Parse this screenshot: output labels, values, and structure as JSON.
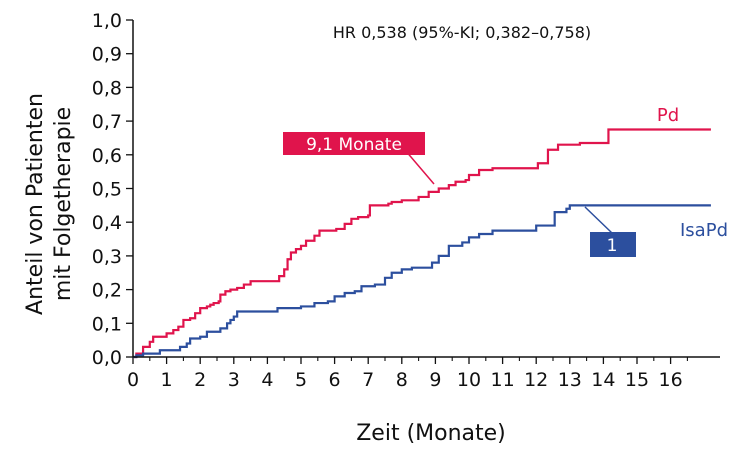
{
  "chart_data": {
    "type": "line",
    "xlabel": "Zeit (Monate)",
    "ylabel": [
      "Anteil von Patienten",
      "mit Folgetherapie"
    ],
    "xlim": [
      0,
      17.5
    ],
    "ylim": [
      0,
      1.0
    ],
    "x_ticks": [
      "0",
      "1",
      "2",
      "3",
      "4",
      "5",
      "6",
      "7",
      "8",
      "9",
      "10",
      "11",
      "12",
      "13",
      "14",
      "15",
      "16"
    ],
    "y_ticks": [
      "0,0",
      "0,1",
      "0,2",
      "0,3",
      "0,4",
      "0,5",
      "0,6",
      "0,7",
      "0,8",
      "0,9",
      "1,0"
    ],
    "annotation": "HR 0,538 (95%-KI; 0,382–0,758)",
    "series": [
      {
        "name": "Pd",
        "color": "#e0144c",
        "points": [
          [
            0,
            0
          ],
          [
            0.1,
            0.01
          ],
          [
            0.3,
            0.03
          ],
          [
            0.5,
            0.045
          ],
          [
            0.6,
            0.06
          ],
          [
            0.9,
            0.06
          ],
          [
            1.0,
            0.07
          ],
          [
            1.2,
            0.08
          ],
          [
            1.35,
            0.09
          ],
          [
            1.5,
            0.11
          ],
          [
            1.7,
            0.115
          ],
          [
            1.85,
            0.13
          ],
          [
            2.0,
            0.145
          ],
          [
            2.2,
            0.15
          ],
          [
            2.3,
            0.155
          ],
          [
            2.4,
            0.16
          ],
          [
            2.55,
            0.165
          ],
          [
            2.6,
            0.185
          ],
          [
            2.75,
            0.195
          ],
          [
            2.9,
            0.2
          ],
          [
            3.1,
            0.205
          ],
          [
            3.3,
            0.215
          ],
          [
            3.5,
            0.225
          ],
          [
            4.2,
            0.225
          ],
          [
            4.35,
            0.24
          ],
          [
            4.5,
            0.26
          ],
          [
            4.6,
            0.29
          ],
          [
            4.7,
            0.31
          ],
          [
            4.85,
            0.32
          ],
          [
            5.0,
            0.33
          ],
          [
            5.15,
            0.345
          ],
          [
            5.4,
            0.36
          ],
          [
            5.55,
            0.375
          ],
          [
            5.9,
            0.375
          ],
          [
            6.05,
            0.38
          ],
          [
            6.3,
            0.395
          ],
          [
            6.5,
            0.41
          ],
          [
            6.7,
            0.415
          ],
          [
            7.0,
            0.42
          ],
          [
            7.05,
            0.45
          ],
          [
            7.6,
            0.455
          ],
          [
            7.7,
            0.46
          ],
          [
            8.0,
            0.465
          ],
          [
            8.5,
            0.475
          ],
          [
            8.8,
            0.49
          ],
          [
            9.1,
            0.5
          ],
          [
            9.4,
            0.51
          ],
          [
            9.6,
            0.52
          ],
          [
            9.9,
            0.525
          ],
          [
            10.0,
            0.54
          ],
          [
            10.3,
            0.555
          ],
          [
            10.7,
            0.56
          ],
          [
            12.0,
            0.56
          ],
          [
            12.05,
            0.575
          ],
          [
            12.3,
            0.575
          ],
          [
            12.35,
            0.615
          ],
          [
            12.6,
            0.615
          ],
          [
            12.65,
            0.63
          ],
          [
            13.3,
            0.635
          ],
          [
            14.1,
            0.635
          ],
          [
            14.15,
            0.675
          ],
          [
            17.2,
            0.675
          ]
        ]
      },
      {
        "name": "IsaPd",
        "color": "#2c4f9e",
        "points": [
          [
            0,
            0
          ],
          [
            0.1,
            0.005
          ],
          [
            0.3,
            0.01
          ],
          [
            0.7,
            0.01
          ],
          [
            0.8,
            0.02
          ],
          [
            1.3,
            0.02
          ],
          [
            1.4,
            0.03
          ],
          [
            1.6,
            0.04
          ],
          [
            1.7,
            0.055
          ],
          [
            2.0,
            0.06
          ],
          [
            2.2,
            0.075
          ],
          [
            2.6,
            0.085
          ],
          [
            2.8,
            0.1
          ],
          [
            2.9,
            0.11
          ],
          [
            3.0,
            0.12
          ],
          [
            3.1,
            0.135
          ],
          [
            4.2,
            0.135
          ],
          [
            4.3,
            0.145
          ],
          [
            4.8,
            0.145
          ],
          [
            5.0,
            0.15
          ],
          [
            5.3,
            0.15
          ],
          [
            5.4,
            0.16
          ],
          [
            5.8,
            0.165
          ],
          [
            6.0,
            0.18
          ],
          [
            6.3,
            0.19
          ],
          [
            6.6,
            0.195
          ],
          [
            6.8,
            0.21
          ],
          [
            7.2,
            0.215
          ],
          [
            7.5,
            0.235
          ],
          [
            7.7,
            0.25
          ],
          [
            8.0,
            0.26
          ],
          [
            8.3,
            0.265
          ],
          [
            8.9,
            0.28
          ],
          [
            9.1,
            0.3
          ],
          [
            9.4,
            0.33
          ],
          [
            9.8,
            0.34
          ],
          [
            10.0,
            0.355
          ],
          [
            10.3,
            0.365
          ],
          [
            10.7,
            0.375
          ],
          [
            11.9,
            0.375
          ],
          [
            12.0,
            0.39
          ],
          [
            12.5,
            0.39
          ],
          [
            12.55,
            0.43
          ],
          [
            12.9,
            0.44
          ],
          [
            13.0,
            0.45
          ],
          [
            17.2,
            0.45
          ]
        ]
      }
    ],
    "labels": {
      "pd": "Pd",
      "isapd": "IsaPd",
      "pd_median": "9,1 Monate",
      "isapd_median": "1"
    }
  }
}
